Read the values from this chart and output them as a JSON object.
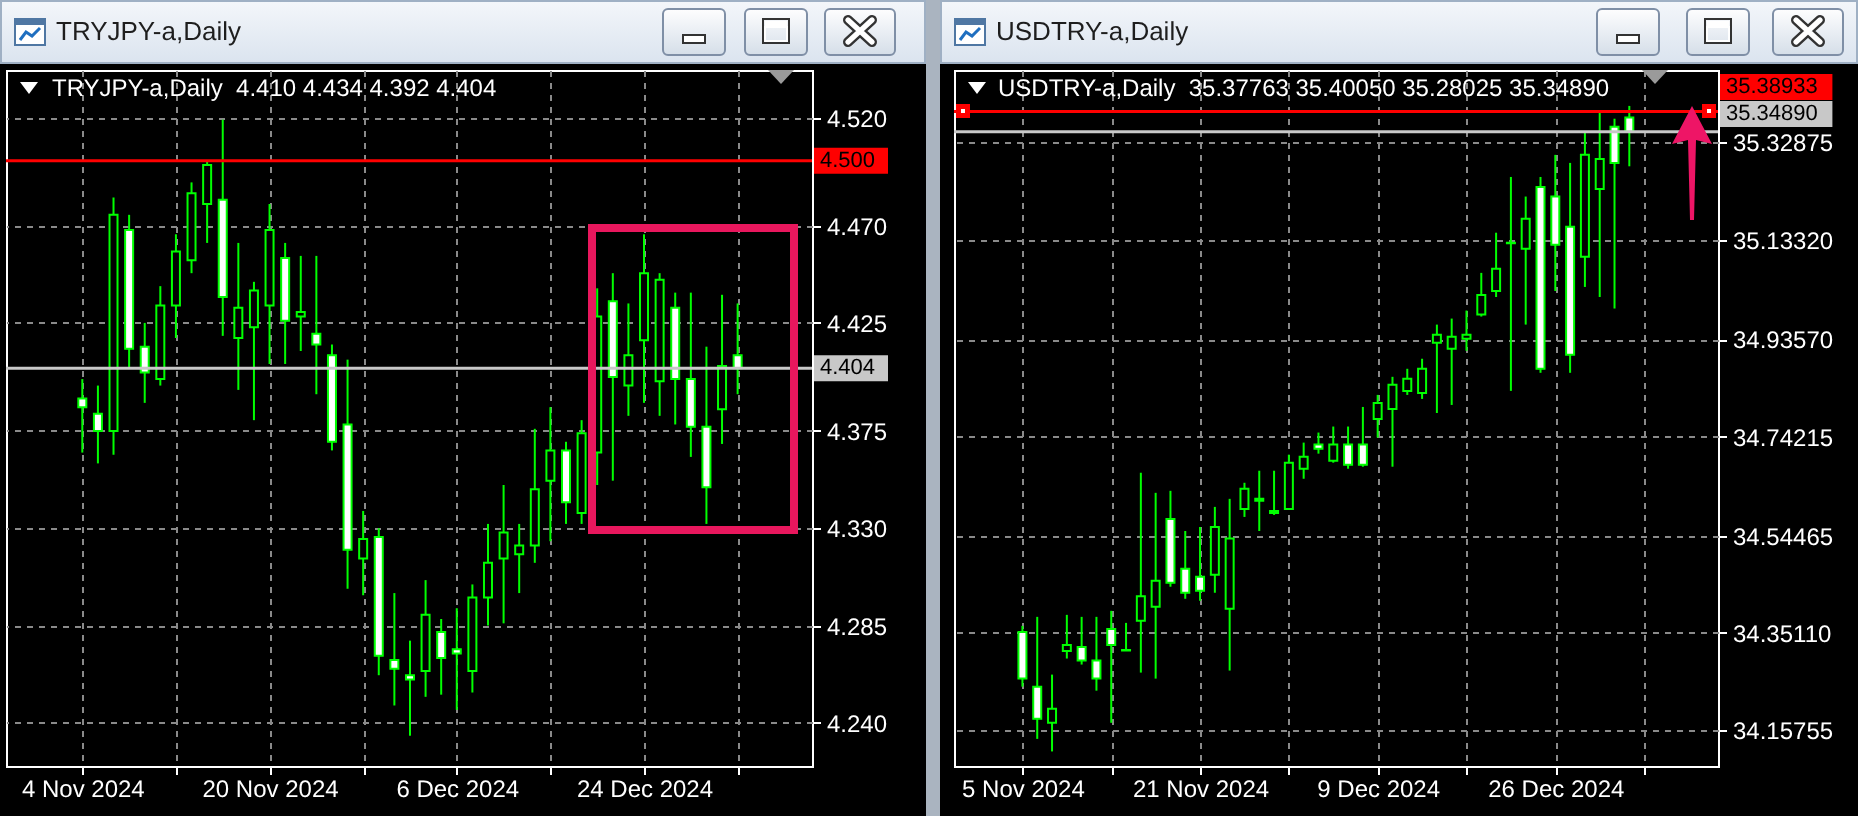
{
  "chart_data": [
    {
      "type": "candlestick",
      "title": "TRYJPY-a,Daily",
      "subtitle": "TRYJPY-a,Daily  4.410 4.434 4.392 4.404",
      "categories": [
        "4 Nov 2024",
        null,
        null,
        null,
        null,
        null,
        null,
        null,
        null,
        null,
        null,
        null,
        "20 Nov 2024",
        null,
        null,
        null,
        null,
        null,
        null,
        null,
        null,
        null,
        null,
        null,
        "6 Dec 2024",
        null,
        null,
        null,
        null,
        null,
        null,
        null,
        null,
        null,
        null,
        null,
        "24 Dec 2024",
        null,
        null,
        null,
        null,
        null,
        null
      ],
      "ohlc": [
        [
          4.39,
          4.399,
          4.365,
          4.386
        ],
        [
          4.383,
          4.396,
          4.36,
          4.375
        ],
        [
          4.375,
          4.483,
          4.364,
          4.475
        ],
        [
          4.468,
          4.475,
          4.404,
          4.413
        ],
        [
          4.414,
          4.425,
          4.388,
          4.402
        ],
        [
          4.399,
          4.442,
          4.396,
          4.433
        ],
        [
          4.433,
          4.466,
          4.418,
          4.458
        ],
        [
          4.454,
          4.49,
          4.448,
          4.485
        ],
        [
          4.48,
          4.5,
          4.462,
          4.498
        ],
        [
          4.482,
          4.519,
          4.419,
          4.437
        ],
        [
          4.418,
          4.462,
          4.394,
          4.432
        ],
        [
          4.423,
          4.444,
          4.38,
          4.44
        ],
        [
          4.433,
          4.48,
          4.406,
          4.468
        ],
        [
          4.455,
          4.462,
          4.406,
          4.426
        ],
        [
          4.428,
          4.456,
          4.412,
          4.43
        ],
        [
          4.42,
          4.456,
          4.392,
          4.415
        ],
        [
          4.41,
          4.415,
          4.366,
          4.37
        ],
        [
          4.378,
          4.408,
          4.302,
          4.32
        ],
        [
          4.316,
          4.338,
          4.299,
          4.325
        ],
        [
          4.326,
          4.33,
          4.262,
          4.271
        ],
        [
          4.269,
          4.3,
          4.248,
          4.265
        ],
        [
          4.262,
          4.278,
          4.234,
          4.26
        ],
        [
          4.264,
          4.306,
          4.252,
          4.29
        ],
        [
          4.282,
          4.288,
          4.253,
          4.27
        ],
        [
          4.274,
          4.293,
          4.246,
          4.272
        ],
        [
          4.264,
          4.304,
          4.254,
          4.298
        ],
        [
          4.298,
          4.332,
          4.285,
          4.314
        ],
        [
          4.316,
          4.35,
          4.286,
          4.328
        ],
        [
          4.318,
          4.332,
          4.3,
          4.322
        ],
        [
          4.322,
          4.376,
          4.314,
          4.348
        ],
        [
          4.352,
          4.386,
          4.324,
          4.366
        ],
        [
          4.366,
          4.37,
          4.332,
          4.342
        ],
        [
          4.337,
          4.38,
          4.332,
          4.374
        ],
        [
          4.365,
          4.441,
          4.35,
          4.428
        ],
        [
          4.435,
          4.448,
          4.352,
          4.4
        ],
        [
          4.396,
          4.434,
          4.382,
          4.41
        ],
        [
          4.417,
          4.466,
          4.388,
          4.448
        ],
        [
          4.398,
          4.448,
          4.382,
          4.445
        ],
        [
          4.432,
          4.439,
          4.378,
          4.399
        ],
        [
          4.399,
          4.439,
          4.363,
          4.377
        ],
        [
          4.377,
          4.414,
          4.332,
          4.349
        ],
        [
          4.385,
          4.438,
          4.369,
          4.405
        ],
        [
          4.41,
          4.434,
          4.392,
          4.404
        ]
      ],
      "color": "#00ff00",
      "colors": [
        "#ffffff",
        "#ffffff",
        "#000000",
        "#ffffff",
        "#ffffff",
        "#000000",
        "#000000",
        "#000000",
        "#000000",
        "#ffffff",
        "#000000",
        "#000000",
        "#000000",
        "#ffffff",
        "#000000",
        "#ffffff",
        "#ffffff",
        "#ffffff",
        "#000000",
        "#ffffff",
        "#ffffff",
        "#ffffff",
        "#000000",
        "#ffffff",
        "#ffffff",
        "#000000",
        "#000000",
        "#000000",
        "#000000",
        "#000000",
        "#000000",
        "#ffffff",
        "#000000",
        "#000000",
        "#ffffff",
        "#000000",
        "#000000",
        "#000000",
        "#ffffff",
        "#ffffff",
        "#ffffff",
        "#000000",
        "#ffffff"
      ],
      "ylim": [
        4.22,
        4.542
      ],
      "yticks": [
        {
          "value": 4.24,
          "label": "4.240"
        },
        4.285,
        {
          "value": 4.33,
          "label": "4.330"
        },
        4.375,
        4.425,
        {
          "value": 4.47,
          "label": "4.470"
        },
        {
          "value": 4.52,
          "label": "4.520"
        }
      ],
      "ref_lines": [
        {
          "axis": "y",
          "value": 4.5,
          "label": "4.500",
          "color": "#ff0000"
        },
        {
          "axis": "y",
          "value": 4.404,
          "label": "4.404",
          "color": "#c8c8c8"
        }
      ],
      "grid": true
    },
    {
      "type": "candlestick",
      "title": "USDTRY-a,Daily",
      "subtitle": "USDTRY-a,Daily  35.37763 35.40050 35.28025 35.34890",
      "categories": [
        "5 Nov 2024",
        null,
        null,
        null,
        null,
        null,
        null,
        null,
        null,
        null,
        null,
        null,
        "21 Nov 2024",
        null,
        null,
        null,
        null,
        null,
        null,
        null,
        null,
        null,
        null,
        null,
        "9 Dec 2024",
        null,
        null,
        null,
        null,
        null,
        null,
        null,
        null,
        null,
        null,
        null,
        "26 Dec 2024",
        null,
        null,
        null,
        null,
        null
      ],
      "ohlc": [
        [
          34.353,
          34.365,
          34.244,
          34.26
        ],
        [
          34.244,
          34.383,
          34.14,
          34.18
        ],
        [
          34.172,
          34.268,
          34.115,
          34.2
        ],
        [
          34.315,
          34.387,
          34.3,
          34.327
        ],
        [
          34.323,
          34.383,
          34.288,
          34.296
        ],
        [
          34.296,
          34.383,
          34.236,
          34.26
        ],
        [
          34.359,
          34.395,
          34.172,
          34.327
        ],
        [
          34.317,
          34.371,
          34.315,
          34.316
        ],
        [
          34.375,
          34.67,
          34.272,
          34.424
        ],
        [
          34.403,
          34.63,
          34.26,
          34.455
        ],
        [
          34.578,
          34.634,
          34.443,
          34.451
        ],
        [
          34.479,
          34.554,
          34.419,
          34.431
        ],
        [
          34.463,
          34.562,
          34.415,
          34.435
        ],
        [
          34.467,
          34.602,
          34.431,
          34.562
        ],
        [
          34.399,
          34.618,
          34.276,
          34.539
        ],
        [
          34.598,
          34.65,
          34.582,
          34.638
        ],
        [
          34.618,
          34.674,
          34.554,
          34.614
        ],
        [
          34.594,
          34.674,
          34.586,
          34.59
        ],
        [
          34.598,
          34.706,
          34.597,
          34.69
        ],
        [
          34.678,
          34.73,
          34.658,
          34.702
        ],
        [
          34.726,
          34.75,
          34.708,
          34.718
        ],
        [
          34.694,
          34.762,
          34.69,
          34.726
        ],
        [
          34.726,
          34.762,
          34.678,
          34.686
        ],
        [
          34.726,
          34.801,
          34.682,
          34.686
        ],
        [
          34.777,
          34.825,
          34.74,
          34.809
        ],
        [
          34.797,
          34.861,
          34.682,
          34.845
        ],
        [
          34.833,
          34.877,
          34.825,
          34.857
        ],
        [
          34.829,
          34.897,
          34.817,
          34.877
        ],
        [
          34.929,
          34.965,
          34.789,
          34.945
        ],
        [
          34.917,
          34.977,
          34.805,
          34.941
        ],
        [
          34.937,
          34.993,
          34.913,
          34.945
        ],
        [
          34.985,
          35.068,
          34.981,
          35.024
        ],
        [
          35.032,
          35.148,
          35.02,
          35.076
        ],
        [
          35.128,
          35.259,
          34.833,
          35.127
        ],
        [
          35.116,
          35.22,
          34.965,
          35.176
        ],
        [
          35.239,
          35.259,
          34.869,
          34.877
        ],
        [
          35.22,
          35.303,
          35.032,
          35.124
        ],
        [
          35.16,
          35.287,
          34.869,
          34.905
        ],
        [
          35.1,
          35.347,
          35.04,
          35.303
        ],
        [
          35.235,
          35.387,
          35.02,
          35.295
        ],
        [
          35.359,
          35.375,
          34.997,
          35.287
        ],
        [
          35.37763,
          35.4005,
          35.28025,
          35.3489
        ]
      ],
      "color": "#00ff00",
      "colors": [
        "#ffffff",
        "#ffffff",
        "#000000",
        "#000000",
        "#ffffff",
        "#ffffff",
        "#ffffff",
        "#ffffff",
        "#000000",
        "#000000",
        "#ffffff",
        "#ffffff",
        "#ffffff",
        "#000000",
        "#000000",
        "#000000",
        "#ffffff",
        "#ffffff",
        "#000000",
        "#000000",
        "#ffffff",
        "#000000",
        "#ffffff",
        "#ffffff",
        "#000000",
        "#000000",
        "#000000",
        "#000000",
        "#000000",
        "#000000",
        "#000000",
        "#000000",
        "#000000",
        "#ffffff",
        "#000000",
        "#ffffff",
        "#ffffff",
        "#ffffff",
        "#000000",
        "#000000",
        "#ffffff",
        "#ffffff"
      ],
      "ylim": [
        34.086,
        35.472
      ],
      "yticks": [
        34.15755,
        {
          "value": 34.3511,
          "label": "34.35110"
        },
        34.54465,
        34.74215,
        {
          "value": 34.9357,
          "label": "34.93570"
        },
        {
          "value": 35.1332,
          "label": "35.13320"
        },
        35.32875
      ],
      "ref_lines": [
        {
          "axis": "y",
          "value": 35.38933,
          "label": "35.38933",
          "color": "#ff0000"
        },
        {
          "axis": "y",
          "value": 35.3489,
          "label": "35.34890",
          "color": "#c8c8c8"
        }
      ],
      "grid": true
    }
  ]
}
